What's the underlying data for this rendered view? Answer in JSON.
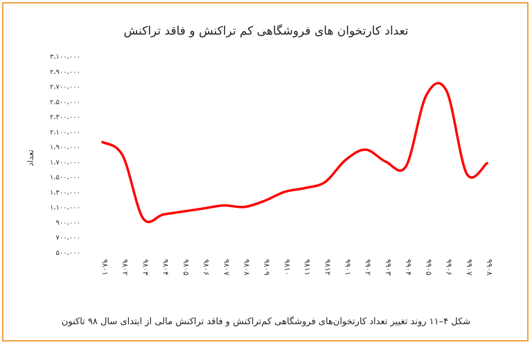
{
  "chart_data": {
    "type": "line",
    "title": "تعداد کارتخوان های فروشگاهی کم تراکنش و فاقد تراکنش",
    "ylabel": "تعداد",
    "xlabel": "",
    "categories": [
      "۹۸۰۱",
      "۹۸۰۲",
      "۹۸۰۳",
      "۹۸۰۴",
      "۹۸۰۵",
      "۹۸۰۶",
      "۹۸۰۷",
      "۹۸۰۸",
      "۹۸۰۹",
      "۹۸۱۰",
      "۹۸۱۱",
      "۹۸۱۲",
      "۹۹۰۱",
      "۹۹۰۲",
      "۹۹۰۳",
      "۹۹۰۴",
      "۹۹۰۵",
      "۹۹۰۶",
      "۹۹۰۷",
      "۹۹۰۸"
    ],
    "yticks": [
      "۵۰۰،۰۰۰",
      "۷۰۰،۰۰۰",
      "۹۰۰،۰۰۰",
      "۱،۱۰۰،۰۰۰",
      "۱،۳۰۰،۰۰۰",
      "۱،۵۰۰،۰۰۰",
      "۱،۷۰۰،۰۰۰",
      "۱،۹۰۰،۰۰۰",
      "۲،۱۰۰،۰۰۰",
      "۲،۳۰۰،۰۰۰",
      "۲،۵۰۰،۰۰۰",
      "۲،۷۰۰،۰۰۰",
      "۲،۹۰۰،۰۰۰",
      "۳،۱۰۰،۰۰۰"
    ],
    "ylim": [
      500000,
      3100000
    ],
    "series": [
      {
        "values": [
          1960000,
          1780000,
          950000,
          1000000,
          1040000,
          1080000,
          1120000,
          1100000,
          1180000,
          1300000,
          1350000,
          1430000,
          1720000,
          1860000,
          1700000,
          1640000,
          2580000,
          2640000,
          1540000,
          1680000
        ]
      }
    ],
    "line_color": "#ff0000",
    "grid": false
  },
  "caption": "شکل ۴–۱۱ روند تغییر تعداد کارتخوان‌های فروشگاهی کم‌تراکنش و فاقد تراکنش مالی از ابتدای سال ۹۸ تاکنون"
}
